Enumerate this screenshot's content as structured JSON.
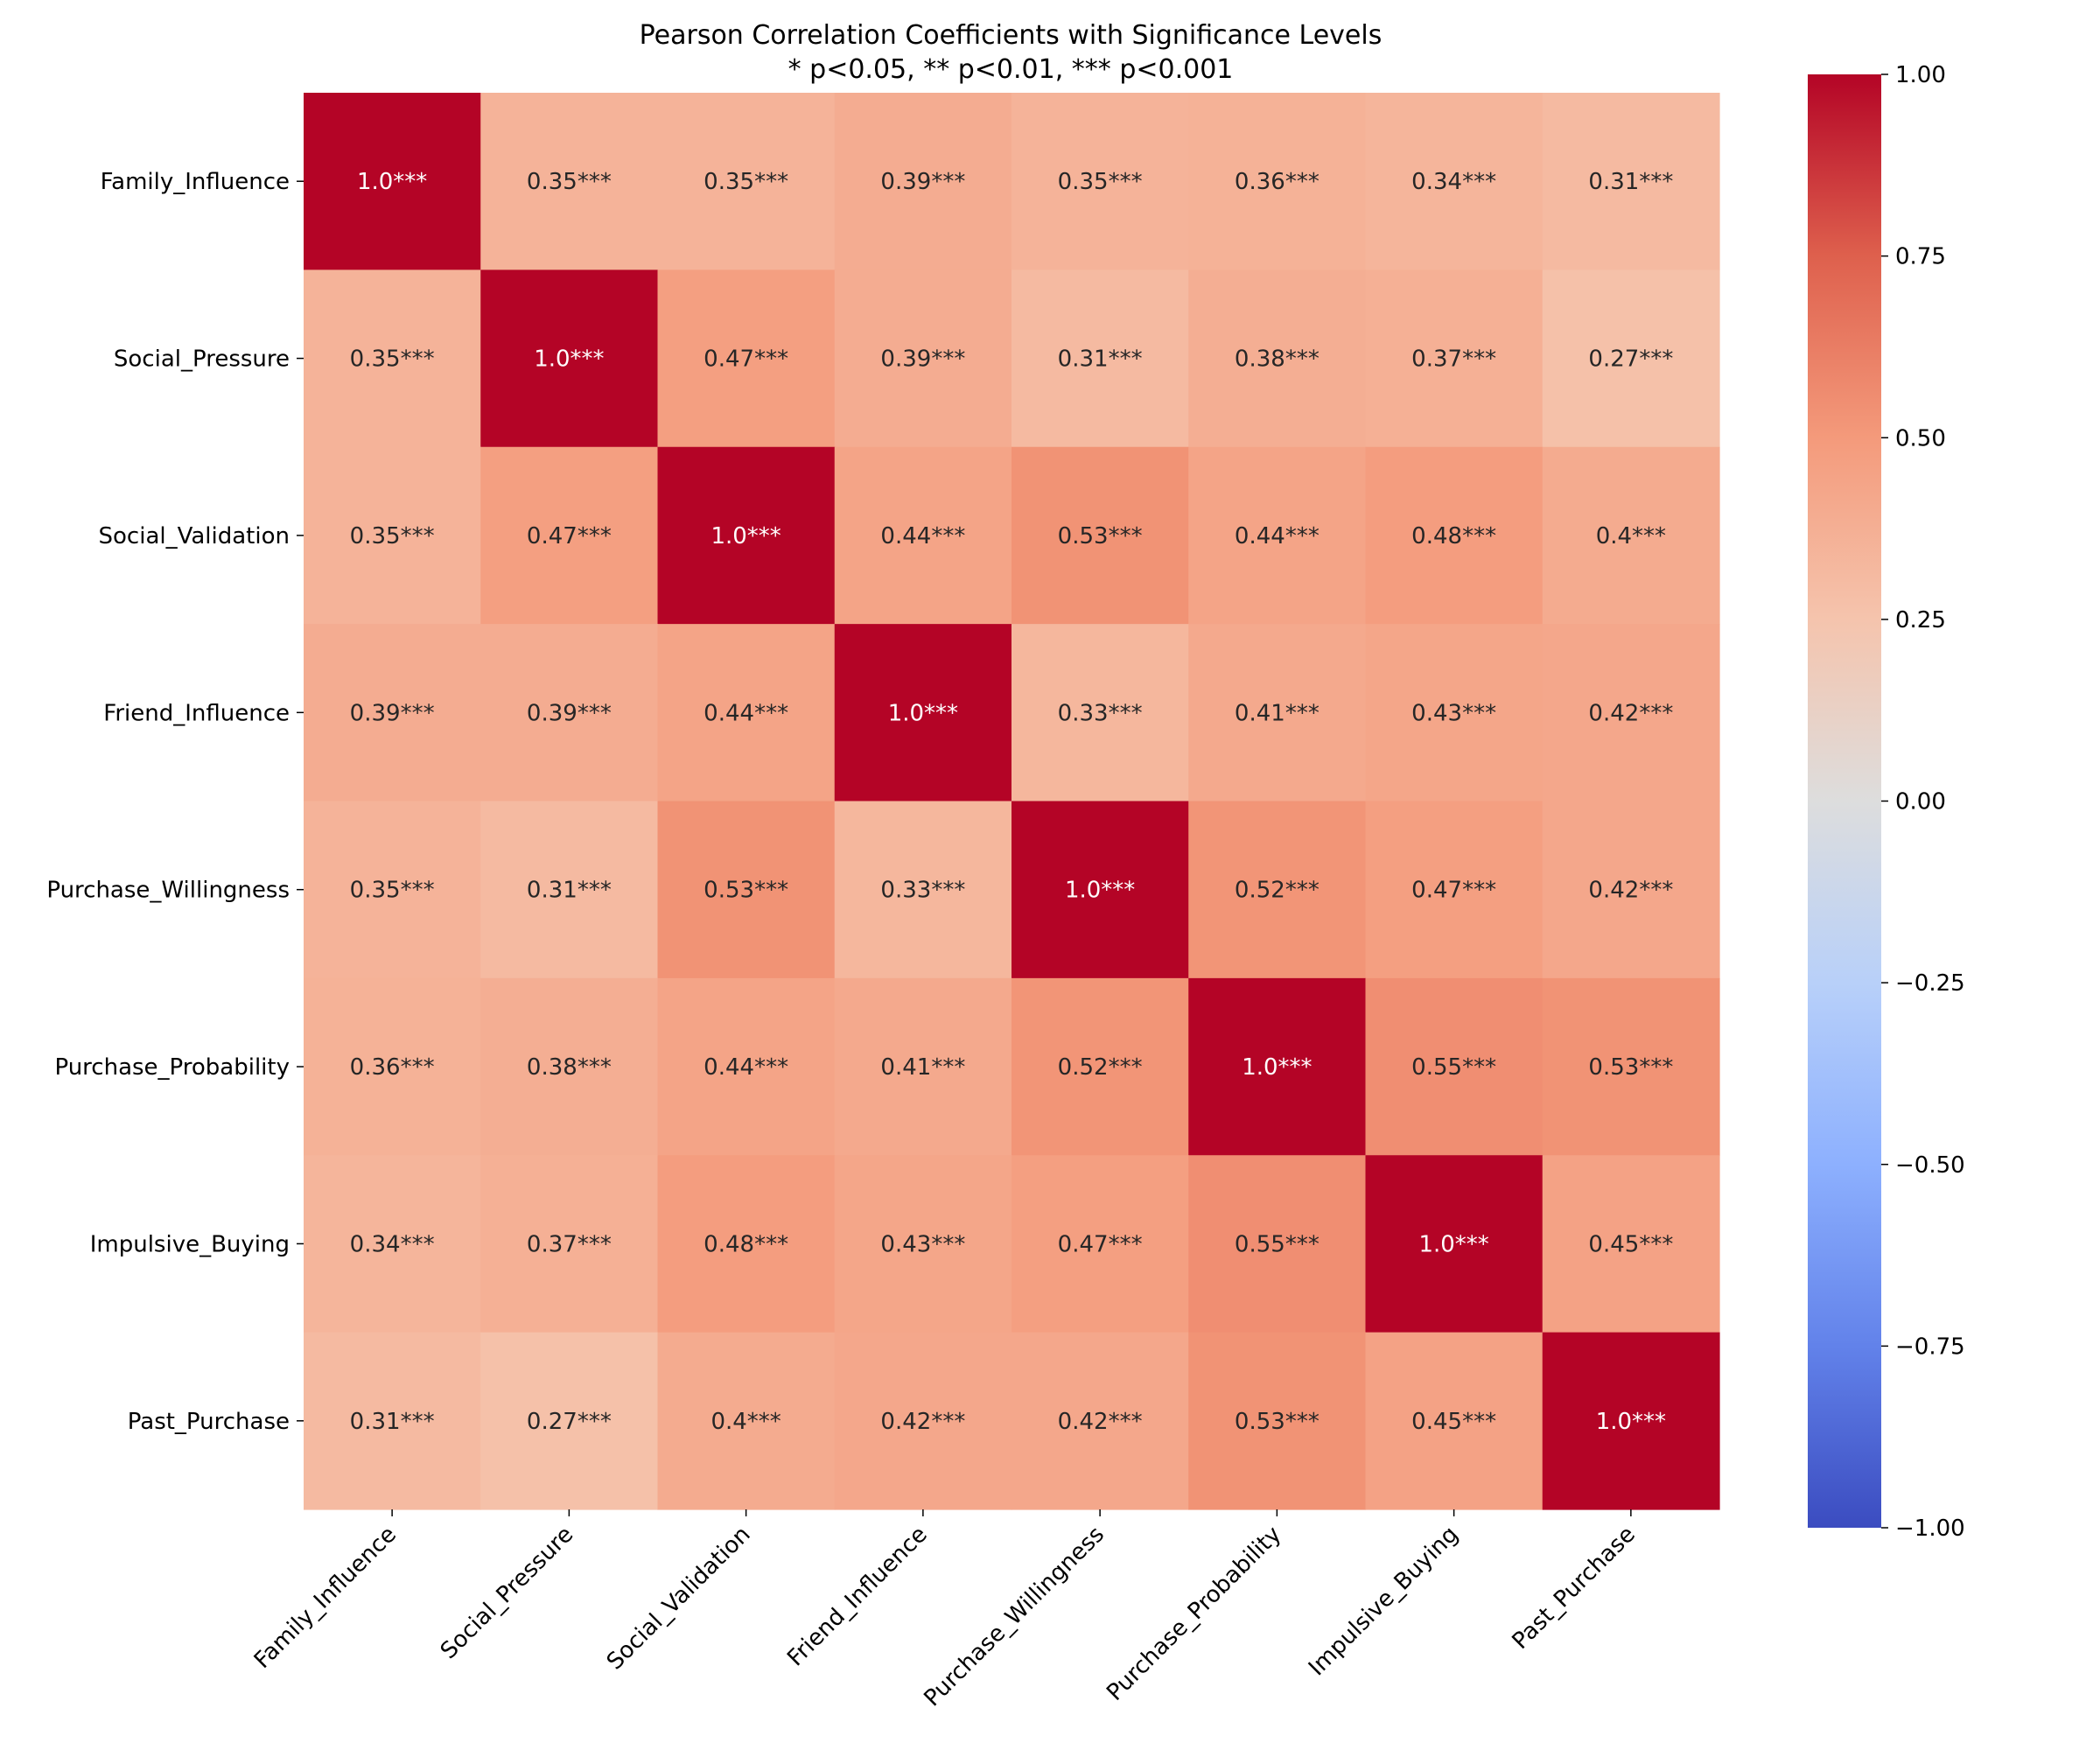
{
  "chart_data": {
    "type": "heatmap",
    "title": "Pearson Correlation Coefficients with Significance Levels",
    "subtitle": "* p<0.05, ** p<0.01, *** p<0.001",
    "xlabel": "",
    "ylabel": "",
    "variables": [
      "Family_Influence",
      "Social_Pressure",
      "Social_Validation",
      "Friend_Influence",
      "Purchase_Willingness",
      "Purchase_Probability",
      "Impulsive_Buying",
      "Past_Purchase"
    ],
    "values": [
      [
        1.0,
        0.35,
        0.35,
        0.39,
        0.35,
        0.36,
        0.34,
        0.31
      ],
      [
        0.35,
        1.0,
        0.47,
        0.39,
        0.31,
        0.38,
        0.37,
        0.27
      ],
      [
        0.35,
        0.47,
        1.0,
        0.44,
        0.53,
        0.44,
        0.48,
        0.4
      ],
      [
        0.39,
        0.39,
        0.44,
        1.0,
        0.33,
        0.41,
        0.43,
        0.42
      ],
      [
        0.35,
        0.31,
        0.53,
        0.33,
        1.0,
        0.52,
        0.47,
        0.42
      ],
      [
        0.36,
        0.38,
        0.44,
        0.41,
        0.52,
        1.0,
        0.55,
        0.53
      ],
      [
        0.34,
        0.37,
        0.48,
        0.43,
        0.47,
        0.55,
        1.0,
        0.45
      ],
      [
        0.31,
        0.27,
        0.4,
        0.42,
        0.42,
        0.53,
        0.45,
        1.0
      ]
    ],
    "annotations": [
      [
        "1.0***",
        "0.35***",
        "0.35***",
        "0.39***",
        "0.35***",
        "0.36***",
        "0.34***",
        "0.31***"
      ],
      [
        "0.35***",
        "1.0***",
        "0.47***",
        "0.39***",
        "0.31***",
        "0.38***",
        "0.37***",
        "0.27***"
      ],
      [
        "0.35***",
        "0.47***",
        "1.0***",
        "0.44***",
        "0.53***",
        "0.44***",
        "0.48***",
        "0.4***"
      ],
      [
        "0.39***",
        "0.39***",
        "0.44***",
        "1.0***",
        "0.33***",
        "0.41***",
        "0.43***",
        "0.42***"
      ],
      [
        "0.35***",
        "0.31***",
        "0.53***",
        "0.33***",
        "1.0***",
        "0.52***",
        "0.47***",
        "0.42***"
      ],
      [
        "0.36***",
        "0.38***",
        "0.44***",
        "0.41***",
        "0.52***",
        "1.0***",
        "0.55***",
        "0.53***"
      ],
      [
        "0.34***",
        "0.37***",
        "0.48***",
        "0.43***",
        "0.47***",
        "0.55***",
        "1.0***",
        "0.45***"
      ],
      [
        "0.31***",
        "0.27***",
        "0.4***",
        "0.42***",
        "0.42***",
        "0.53***",
        "0.45***",
        "1.0***"
      ]
    ],
    "colormap": "coolwarm",
    "vmin": -1.0,
    "vmax": 1.0,
    "colorbar": {
      "ticks": [
        1.0,
        0.75,
        0.5,
        0.25,
        0.0,
        -0.25,
        -0.5,
        -0.75,
        -1.0
      ],
      "tick_labels": [
        "1.00",
        "0.75",
        "0.50",
        "0.25",
        "0.00",
        "−0.25",
        "−0.50",
        "−0.75",
        "−1.00"
      ],
      "placement": "right"
    },
    "xtick_rotation_deg": 45,
    "grid": false
  }
}
